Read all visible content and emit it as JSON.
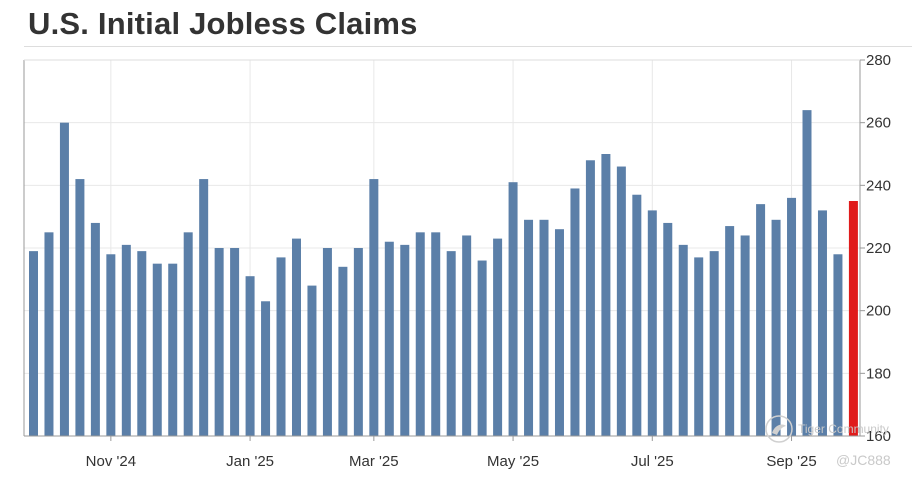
{
  "chart_data": {
    "type": "bar",
    "title": "U.S. Initial Jobless Claims",
    "y_axis": {
      "min": 160,
      "max": 280,
      "ticks": [
        160,
        180,
        200,
        220,
        240,
        260,
        280
      ],
      "position": "right"
    },
    "x_axis": {
      "labels": [
        {
          "label": "Nov '24",
          "index": 5
        },
        {
          "label": "Jan '25",
          "index": 14
        },
        {
          "label": "Mar '25",
          "index": 22
        },
        {
          "label": "May '25",
          "index": 31
        },
        {
          "label": "Jul '25",
          "index": 40
        },
        {
          "label": "Sep '25",
          "index": 49
        }
      ]
    },
    "grid": true,
    "values": [
      219,
      225,
      260,
      242,
      228,
      218,
      221,
      219,
      215,
      215,
      225,
      242,
      220,
      220,
      211,
      203,
      217,
      223,
      208,
      220,
      214,
      220,
      242,
      222,
      221,
      225,
      225,
      219,
      224,
      216,
      223,
      241,
      229,
      229,
      226,
      239,
      248,
      250,
      246,
      237,
      232,
      228,
      221,
      217,
      219,
      227,
      224,
      234,
      229,
      236,
      264,
      232,
      218,
      235
    ],
    "colors": {
      "bar": "#5b7fa8",
      "highlight": "#e01b1b"
    },
    "highlight_index": 53
  },
  "watermark": {
    "text": "Tiger Community",
    "handle": "@JC888"
  }
}
